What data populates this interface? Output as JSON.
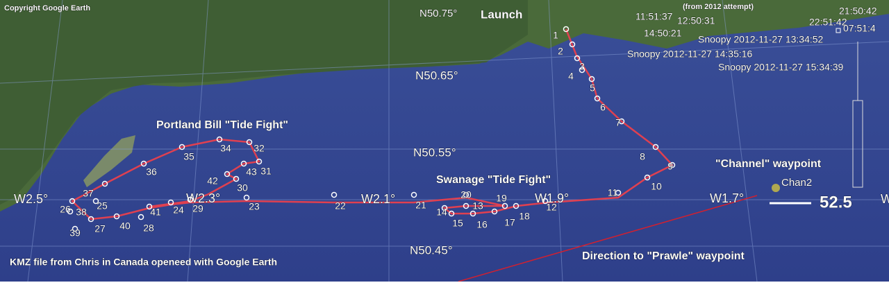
{
  "copyright": "Copyright Google Earth",
  "launch": "Launch",
  "attempt_note": "(from 2012 attempt)",
  "latitudes": [
    "N50.75°",
    "N50.65°",
    "N50.55°",
    "N50.45°"
  ],
  "longitudes": [
    "W2.5°",
    "W2.3°",
    "W2.1°",
    "W1.9°",
    "W1.7°",
    "W"
  ],
  "annotations": {
    "portland": "Portland Bill \"Tide Fight\"",
    "swanage": "Swanage \"Tide Fight\"",
    "channel": "\"Channel\" waypoint",
    "prawle": "Direction to \"Prawle\" waypoint",
    "footer": "KMZ file from Chris in Canada openeed with Google Earth"
  },
  "chan_marker": "Chan2",
  "distance": "52.5",
  "times": [
    "11:51:37",
    "12:50:31",
    "14:50:21",
    "22:51:42",
    "21:50:42",
    "07:51:4"
  ],
  "snoopy": [
    "Snoopy 2012-11-27 13:34:52",
    "Snoopy 2012-11-27 14:35:16",
    "Snoopy 2012-11-27 15:34:39"
  ],
  "waypoints": [
    "1",
    "2",
    "3",
    "4",
    "5",
    "6",
    "7",
    "8",
    "9",
    "10",
    "11",
    "12",
    "13",
    "14",
    "15",
    "16",
    "17",
    "18",
    "19",
    "20",
    "21",
    "22",
    "23",
    "24",
    "25",
    "26",
    "27",
    "28",
    "29",
    "30",
    "31",
    "32",
    "34",
    "35",
    "36",
    "37",
    "38",
    "39",
    "40",
    "41",
    "42",
    "43"
  ]
}
